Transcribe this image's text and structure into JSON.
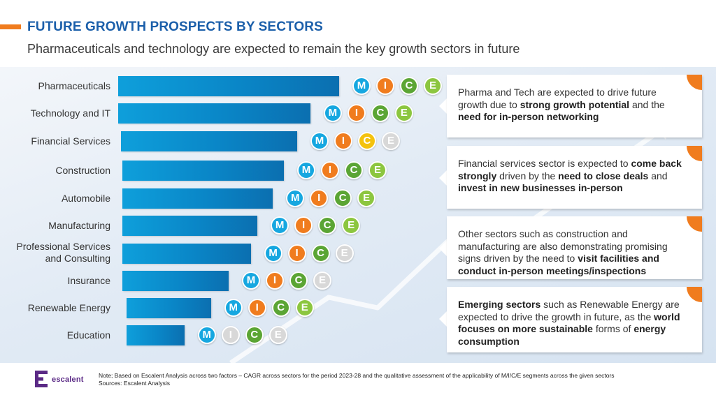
{
  "header": {
    "title": "FUTURE GROWTH PROSPECTS BY SECTORS",
    "subtitle": "Pharmaceuticals and technology are expected to remain the key growth sectors in future"
  },
  "colors": {
    "accent": "#F07C1E",
    "title_blue": "#1B5FAA",
    "bar_blue": "#0A86C7",
    "M": "#16A7E0",
    "I": "#F07C1E",
    "C": "#5BA534",
    "E": "#8CC63F",
    "C_highlight": "#F4C20D",
    "inactive": "#D8D8D8"
  },
  "segment_letters": [
    "M",
    "I",
    "C",
    "E"
  ],
  "sectors": [
    {
      "label": "Pharmaceuticals",
      "segments": {
        "M": "on",
        "I": "on",
        "C": "on",
        "E": "on"
      }
    },
    {
      "label": "Technology and IT",
      "segments": {
        "M": "on",
        "I": "on",
        "C": "on",
        "E": "on"
      }
    },
    {
      "label": "Financial Services",
      "segments": {
        "M": "on",
        "I": "on",
        "C": "highlight",
        "E": "off"
      }
    },
    {
      "label": "Construction",
      "segments": {
        "M": "on",
        "I": "on",
        "C": "on",
        "E": "on"
      }
    },
    {
      "label": "Automobile",
      "segments": {
        "M": "on",
        "I": "on",
        "C": "on",
        "E": "on"
      }
    },
    {
      "label": "Manufacturing",
      "segments": {
        "M": "on",
        "I": "on",
        "C": "on",
        "E": "on"
      }
    },
    {
      "label": "Professional Services and Consulting",
      "label_line1": "Professional Services",
      "label_line2": "and Consulting",
      "segments": {
        "M": "on",
        "I": "on",
        "C": "on",
        "E": "off"
      }
    },
    {
      "label": "Insurance",
      "segments": {
        "M": "on",
        "I": "on",
        "C": "on",
        "E": "off"
      }
    },
    {
      "label": "Renewable Energy",
      "segments": {
        "M": "on",
        "I": "on",
        "C": "on",
        "E": "on"
      }
    },
    {
      "label": "Education",
      "segments": {
        "M": "on",
        "I": "off",
        "C": "on",
        "E": "off"
      }
    }
  ],
  "chart_data": {
    "type": "bar",
    "orientation": "horizontal",
    "title": "",
    "categories": [
      "Pharmaceuticals",
      "Technology and IT",
      "Financial Services",
      "Construction",
      "Automobile",
      "Manufacturing",
      "Professional Services and Consulting",
      "Insurance",
      "Renewable Energy",
      "Education"
    ],
    "values": [
      100,
      87,
      81,
      75,
      70,
      63,
      60,
      50,
      42,
      30
    ],
    "value_note": "relative CAGR index (unlabeled bars, estimated)",
    "xlabel": "",
    "ylabel": "",
    "grid": false
  },
  "callouts": [
    {
      "parts": [
        {
          "t": "Pharma and Tech are expected to drive future growth due to ",
          "b": false
        },
        {
          "t": "strong growth potential",
          "b": true
        },
        {
          "t": " and the ",
          "b": false
        },
        {
          "t": "need for in-person networking",
          "b": true
        }
      ]
    },
    {
      "parts": [
        {
          "t": "Financial services sector is expected to ",
          "b": false
        },
        {
          "t": "come back strongly",
          "b": true
        },
        {
          "t": " driven by the ",
          "b": false
        },
        {
          "t": "need to close deals",
          "b": true
        },
        {
          "t": " and ",
          "b": false
        },
        {
          "t": "invest in new businesses in-person",
          "b": true
        }
      ]
    },
    {
      "parts": [
        {
          "t": "Other sectors such as construction and manufacturing are also demonstrating promising signs driven by the need to ",
          "b": false
        },
        {
          "t": "visit facilities and conduct in-person meetings/inspections",
          "b": true
        }
      ]
    },
    {
      "parts": [
        {
          "t": "Emerging sectors",
          "b": true
        },
        {
          "t": " such as Renewable Energy are expected to drive the growth in future, as the ",
          "b": false
        },
        {
          "t": "world focuses on more sustainable",
          "b": true
        },
        {
          "t": " forms of ",
          "b": false
        },
        {
          "t": "energy consumption",
          "b": true
        }
      ]
    }
  ],
  "footer": {
    "logo_text": "escalent",
    "note": "Note; Based on Escalent Analysis across two factors – CAGR across sectors for the period 2023-28 and the qualitative assessment of the applicability of M/I/C/E segments across the given sectors",
    "sources": "Sources: Escalent Analysis"
  }
}
